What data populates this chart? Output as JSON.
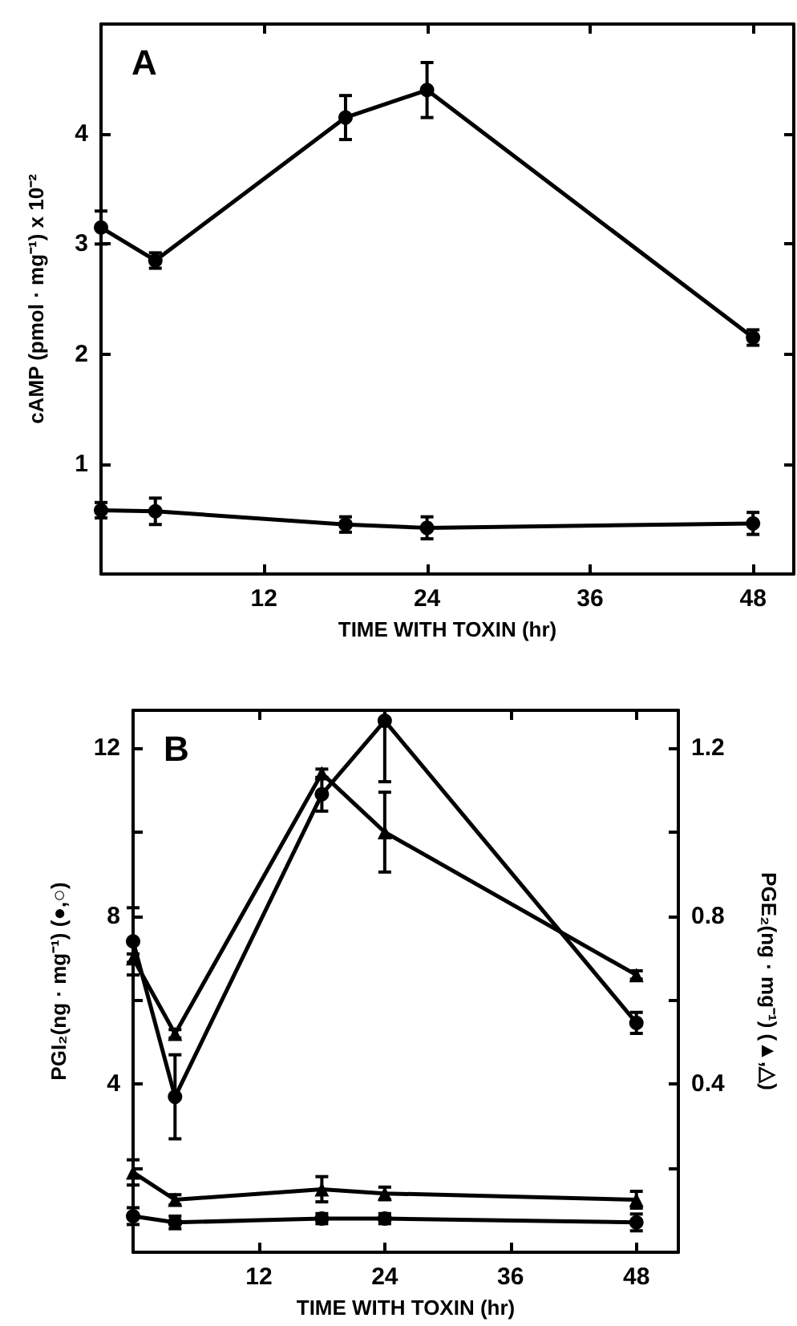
{
  "chart_data": [
    {
      "type": "line",
      "title": "A",
      "xlabel": "TIME WITH TOXIN (hr)",
      "ylabel": "cAMP (pmol · mg⁻¹) x 10⁻²",
      "x": [
        0,
        4,
        18,
        24,
        48
      ],
      "xlim": [
        0,
        51
      ],
      "xticks": [
        {
          "value": 0,
          "label": null
        },
        12,
        24,
        36,
        48
      ],
      "ylim": [
        0,
        5
      ],
      "yticks": [
        1,
        2,
        3,
        4
      ],
      "line_style": "solid",
      "series": [
        {
          "color": "#000000",
          "marker": "circle",
          "values": [
            3.15,
            2.85,
            4.15,
            4.4,
            2.15
          ],
          "errors": [
            0.15,
            0.07,
            0.2,
            0.25,
            0.07
          ]
        },
        {
          "color": "#000000",
          "marker": "circle",
          "values": [
            0.58,
            0.57,
            0.45,
            0.42,
            0.46
          ],
          "errors": [
            0.07,
            0.12,
            0.07,
            0.1,
            0.1
          ]
        }
      ]
    },
    {
      "type": "line",
      "title": "B",
      "xlabel": "TIME WITH TOXIN (hr)",
      "ylabel": "PGI₂(ng · mg⁻¹) (●,○)",
      "y2label": "PGE₂(ng · mg⁻¹) (▲,△)",
      "x": [
        0,
        4,
        18,
        24,
        48
      ],
      "xlim": [
        0,
        52
      ],
      "xticks": [
        {
          "value": 0,
          "label": null
        },
        12,
        24,
        36,
        48
      ],
      "ylim": [
        0,
        12.9
      ],
      "yticks": [
        {
          "value": 2,
          "label": null
        },
        4,
        {
          "value": 6,
          "label": null
        },
        8,
        {
          "value": 10,
          "label": null
        },
        12
      ],
      "y2lim": [
        0,
        1.29
      ],
      "y2ticks": [
        {
          "value": 0.2,
          "label": null
        },
        0.4,
        {
          "value": 0.6,
          "label": null
        },
        0.8,
        {
          "value": 1.0,
          "label": null
        },
        1.2
      ],
      "line_style": "solid",
      "series": [
        {
          "color": "#000000",
          "marker": "circle",
          "values": [
            7.4,
            3.7,
            10.9,
            12.65,
            5.46
          ],
          "errors": [
            0.8,
            1.0,
            0.4,
            [
              11.2,
              12.9
            ],
            0.25
          ]
        },
        {
          "color": "#000000",
          "marker": "triangle",
          "axis": "y2",
          "values": [
            0.7,
            0.52,
            1.14,
            1.0,
            0.66
          ],
          "errors": [
            0.01,
            0.01,
            0.01,
            0.095,
            0.01
          ]
        },
        {
          "color": "#000000",
          "marker": "triangle",
          "axis": "y2",
          "values": [
            0.19,
            0.125,
            0.15,
            0.14,
            0.125
          ],
          "errors": [
            0.03,
            0.012,
            0.03,
            0.015,
            0.02
          ]
        },
        {
          "color": "#000000",
          "marker": "circle",
          "values": [
            0.86,
            0.71,
            0.8,
            0.8,
            0.71
          ],
          "errors": [
            0.2,
            0.15,
            0.12,
            0.12,
            0.2
          ]
        }
      ]
    }
  ]
}
